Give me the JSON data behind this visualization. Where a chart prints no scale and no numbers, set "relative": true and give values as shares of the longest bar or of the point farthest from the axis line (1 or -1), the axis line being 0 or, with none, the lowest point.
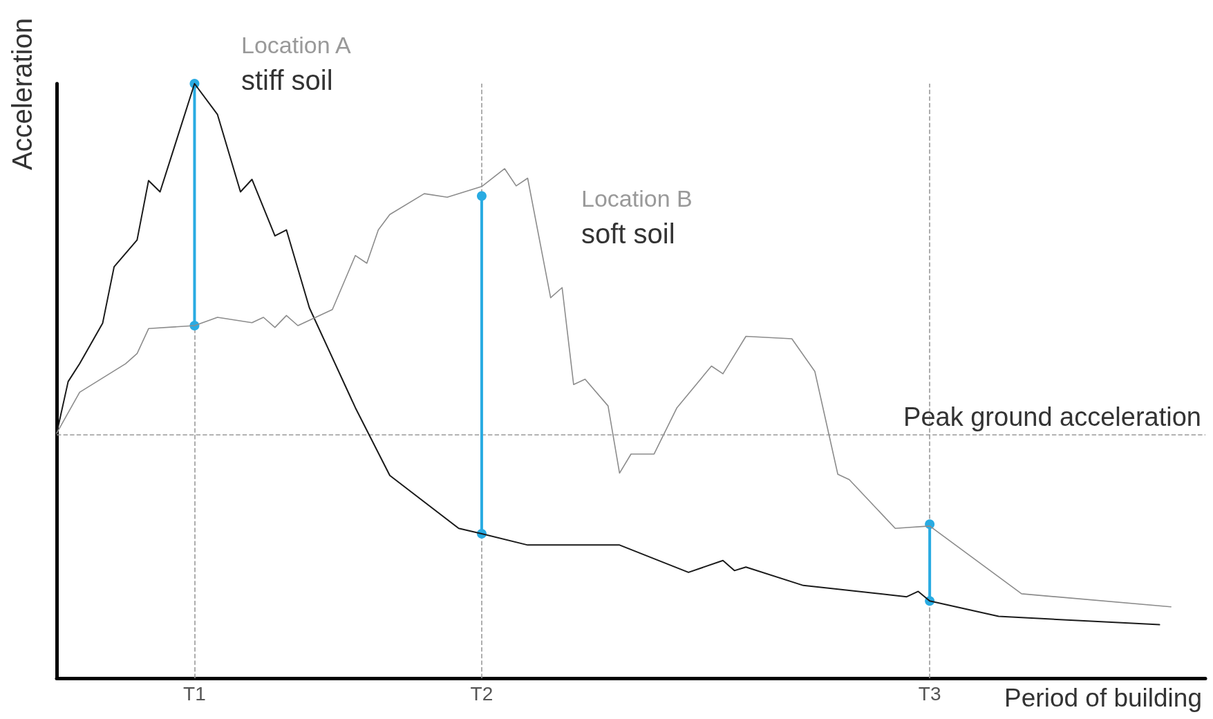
{
  "chart_data": {
    "type": "line",
    "relative": true,
    "xlabel": "Period of building",
    "ylabel": "Acceleration",
    "categories": [
      null,
      null,
      null,
      null,
      null,
      null,
      null,
      null,
      null,
      null,
      null,
      null,
      "T1",
      null,
      null,
      null,
      null,
      null,
      null,
      null,
      null,
      null,
      null,
      null,
      null,
      null,
      null,
      null,
      null,
      null,
      null,
      null,
      null,
      null,
      null,
      null,
      null,
      "T2",
      null,
      null,
      null,
      null,
      null,
      null,
      null,
      null,
      null,
      null,
      null,
      null,
      null,
      null,
      null,
      null,
      null,
      null,
      null,
      null,
      null,
      null,
      null,
      null,
      null,
      null,
      null,
      null,
      null,
      null,
      null,
      null,
      null,
      null,
      null,
      null,
      null,
      null,
      "T3",
      null,
      null,
      null,
      null,
      null,
      null,
      null,
      null,
      null,
      null,
      null,
      null,
      null,
      null,
      null,
      null,
      null,
      null,
      null,
      null,
      null,
      null,
      null,
      null
    ],
    "marker": "none",
    "line_style": "solid",
    "series": [
      {
        "color": "#1a1a1a",
        "values": [
          0.412,
          0.499,
          0.529,
          null,
          0.597,
          0.692,
          null,
          0.737,
          0.837,
          0.818,
          null,
          null,
          1.0,
          null,
          0.948,
          null,
          0.818,
          0.839,
          null,
          0.744,
          0.754,
          null,
          0.623,
          null,
          null,
          null,
          0.455,
          null,
          null,
          0.341,
          null,
          null,
          null,
          null,
          null,
          0.252,
          null,
          0.243,
          null,
          null,
          null,
          0.224,
          null,
          null,
          null,
          null,
          null,
          null,
          null,
          0.224,
          null,
          null,
          null,
          null,
          null,
          0.178,
          null,
          null,
          0.198,
          0.181,
          0.187,
          null,
          null,
          null,
          null,
          0.156,
          null,
          null,
          null,
          null,
          null,
          null,
          null,
          null,
          0.137,
          0.146,
          0.13,
          null,
          null,
          null,
          null,
          null,
          0.104,
          null,
          null,
          null,
          null,
          null,
          null,
          null,
          null,
          null,
          null,
          null,
          null,
          null,
          0.09,
          null,
          null,
          null,
          null
        ]
      },
      {
        "color": "#8c8c8c",
        "values": [
          0.412,
          null,
          0.481,
          null,
          null,
          null,
          0.529,
          0.546,
          0.588,
          null,
          null,
          null,
          0.593,
          null,
          0.607,
          null,
          null,
          0.598,
          0.607,
          0.59,
          0.61,
          0.593,
          null,
          null,
          0.62,
          null,
          0.711,
          0.698,
          0.754,
          0.78,
          null,
          null,
          0.815,
          null,
          0.809,
          null,
          null,
          0.827,
          null,
          0.857,
          0.828,
          0.841,
          null,
          0.64,
          0.657,
          0.494,
          0.503,
          null,
          0.458,
          0.345,
          0.377,
          null,
          0.377,
          null,
          0.455,
          null,
          null,
          0.525,
          0.512,
          null,
          0.575,
          null,
          null,
          null,
          0.571,
          null,
          0.516,
          null,
          0.343,
          0.334,
          null,
          null,
          null,
          0.252,
          null,
          null,
          0.256,
          null,
          null,
          null,
          null,
          null,
          null,
          null,
          0.142,
          null,
          null,
          null,
          null,
          null,
          null,
          null,
          null,
          null,
          null,
          null,
          null,
          0.12,
          null,
          null,
          null
        ]
      },
      {
        "color": "#29abe2",
        "marker": "circle",
        "x": [
          "T1",
          "T1"
        ],
        "values": [
          0.593,
          1.0
        ]
      },
      {
        "color": "#29abe2",
        "marker": "circle",
        "x": [
          "T2",
          "T2"
        ],
        "values": [
          0.243,
          0.811
        ]
      },
      {
        "color": "#29abe2",
        "marker": "circle",
        "x": [
          "T3",
          "T3"
        ],
        "values": [
          0.13,
          0.259
        ]
      }
    ],
    "ref_lines": [
      {
        "axis": "y",
        "value": 0.412,
        "label": "Peak ground acceleration",
        "color": "#999999",
        "line_style": "dashed"
      },
      {
        "axis": "x",
        "value": "T1",
        "color": "#999999",
        "line_style": "dashed"
      },
      {
        "axis": "x",
        "value": "T2",
        "color": "#999999",
        "line_style": "dashed"
      },
      {
        "axis": "x",
        "value": "T3",
        "color": "#999999",
        "line_style": "dashed"
      }
    ],
    "annotations": [
      "Location A\nstiff soil",
      "Location B\nsoft soil"
    ]
  }
}
